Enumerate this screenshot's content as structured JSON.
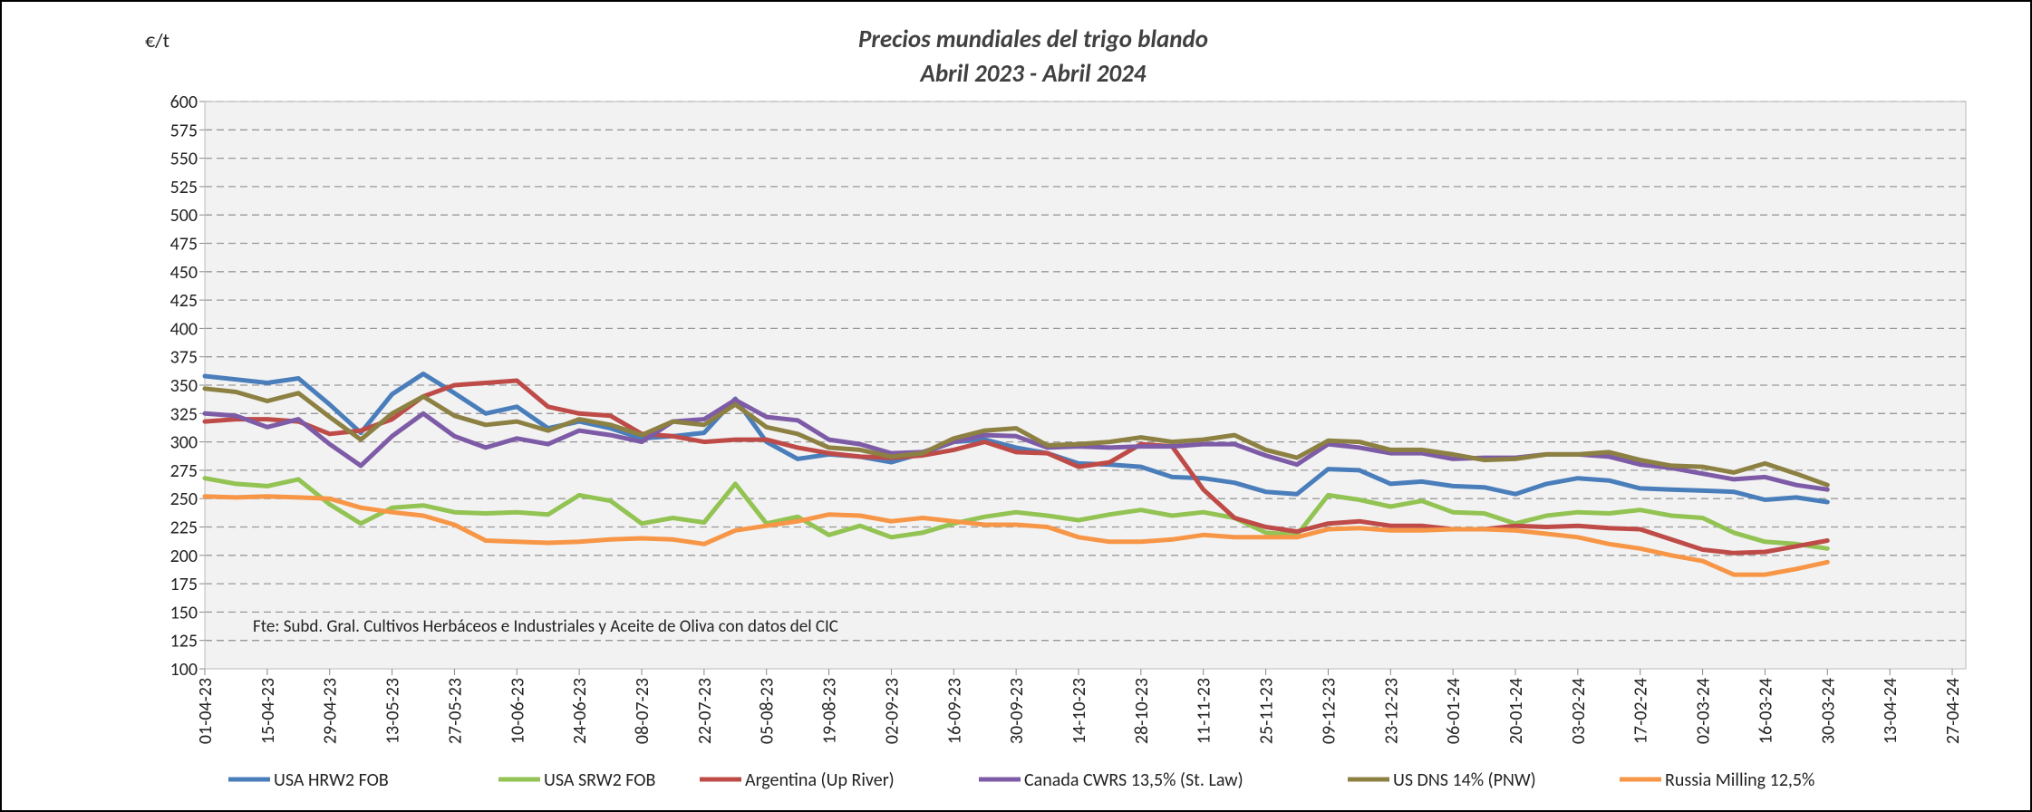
{
  "chart_data": {
    "type": "line",
    "title": "Precios mundiales del trigo blando",
    "subtitle": "Abril 2023 - Abril 2024",
    "y_label": "€/t",
    "annotation": "Fte: Subd. Gral. Cultivos Herbáceos e Industriales y Aceite de Oliva con datos del  CIC",
    "categories": [
      "01-04-23",
      null,
      "15-04-23",
      null,
      "29-04-23",
      null,
      "13-05-23",
      null,
      "27-05-23",
      null,
      "10-06-23",
      null,
      "24-06-23",
      null,
      "08-07-23",
      null,
      "22-07-23",
      null,
      "05-08-23",
      null,
      "19-08-23",
      null,
      "02-09-23",
      null,
      "16-09-23",
      null,
      "30-09-23",
      null,
      "14-10-23",
      null,
      "28-10-23",
      null,
      "11-11-23",
      null,
      "25-11-23",
      null,
      "09-12-23",
      null,
      "23-12-23",
      null,
      "06-01-24",
      null,
      "20-01-24",
      null,
      "03-02-24",
      null,
      "17-02-24",
      null,
      "02-03-24",
      null,
      "16-03-24",
      null,
      "30-03-24",
      null,
      "13-04-24",
      null,
      "27-04-24"
    ],
    "series": [
      {
        "name": "USA HRW2 FOB",
        "color": "#4a7ebb",
        "values": [
          358,
          355,
          352,
          356,
          333,
          308,
          342,
          360,
          343,
          325,
          331,
          312,
          318,
          312,
          303,
          305,
          308,
          338,
          300,
          285,
          289,
          287,
          282,
          290,
          300,
          302,
          295,
          290,
          281,
          280,
          278,
          269,
          268,
          264,
          256,
          254,
          276,
          275,
          263,
          265,
          261,
          260,
          254,
          263,
          268,
          266,
          259,
          258,
          257,
          256,
          249,
          251,
          247,
          null,
          null,
          null,
          null
        ]
      },
      {
        "name": "USA SRW2 FOB",
        "color": "#92c353",
        "values": [
          268,
          263,
          261,
          267,
          245,
          228,
          242,
          244,
          238,
          237,
          238,
          236,
          253,
          248,
          228,
          233,
          229,
          263,
          228,
          234,
          218,
          226,
          216,
          220,
          228,
          234,
          238,
          235,
          231,
          236,
          240,
          235,
          238,
          233,
          220,
          218,
          253,
          249,
          243,
          248,
          238,
          237,
          228,
          235,
          238,
          237,
          240,
          235,
          233,
          220,
          212,
          210,
          206,
          null,
          null,
          null,
          null
        ]
      },
      {
        "name": "Argentina (Up River)",
        "color": "#be4b48",
        "values": [
          318,
          320,
          320,
          318,
          307,
          310,
          320,
          340,
          350,
          352,
          354,
          331,
          325,
          323,
          307,
          305,
          300,
          302,
          302,
          295,
          290,
          287,
          286,
          288,
          293,
          300,
          291,
          290,
          278,
          282,
          298,
          296,
          258,
          233,
          225,
          221,
          228,
          230,
          226,
          226,
          223,
          223,
          226,
          225,
          226,
          224,
          223,
          214,
          205,
          202,
          203,
          208,
          213,
          null,
          null,
          null,
          null
        ]
      },
      {
        "name": "Canada CWRS 13,5% (St. Law)",
        "color": "#7d5ba6",
        "values": [
          325,
          323,
          313,
          320,
          298,
          279,
          305,
          325,
          305,
          295,
          303,
          298,
          310,
          306,
          300,
          318,
          320,
          337,
          322,
          319,
          302,
          298,
          290,
          291,
          300,
          306,
          305,
          295,
          296,
          295,
          296,
          296,
          298,
          298,
          288,
          280,
          298,
          295,
          290,
          290,
          285,
          286,
          286,
          289,
          289,
          287,
          280,
          277,
          272,
          267,
          269,
          262,
          258,
          null,
          null,
          null,
          null
        ]
      },
      {
        "name": "US DNS 14% (PNW)",
        "color": "#8c8042",
        "values": [
          347,
          344,
          336,
          343,
          322,
          302,
          325,
          340,
          323,
          315,
          318,
          310,
          320,
          315,
          306,
          318,
          315,
          333,
          313,
          307,
          295,
          293,
          287,
          290,
          303,
          310,
          312,
          297,
          298,
          300,
          304,
          300,
          302,
          306,
          293,
          286,
          301,
          300,
          293,
          293,
          289,
          284,
          285,
          289,
          289,
          291,
          284,
          279,
          278,
          273,
          281,
          272,
          262,
          null,
          null,
          null,
          null
        ]
      },
      {
        "name": "Russia Milling 12,5%",
        "color": "#f79646",
        "values": [
          252,
          251,
          252,
          251,
          250,
          242,
          238,
          235,
          227,
          213,
          212,
          211,
          212,
          214,
          215,
          214,
          210,
          222,
          226,
          230,
          236,
          235,
          230,
          233,
          230,
          227,
          227,
          225,
          216,
          212,
          212,
          214,
          218,
          216,
          216,
          216,
          223,
          224,
          222,
          222,
          223,
          223,
          222,
          219,
          216,
          210,
          206,
          200,
          195,
          183,
          183,
          188,
          194,
          null,
          null,
          null,
          null
        ]
      }
    ],
    "ylim": [
      100,
      600
    ],
    "yticks": [
      100,
      125,
      150,
      175,
      200,
      225,
      250,
      275,
      300,
      325,
      350,
      375,
      400,
      425,
      450,
      475,
      500,
      525,
      550,
      575,
      600
    ],
    "grid": true
  }
}
